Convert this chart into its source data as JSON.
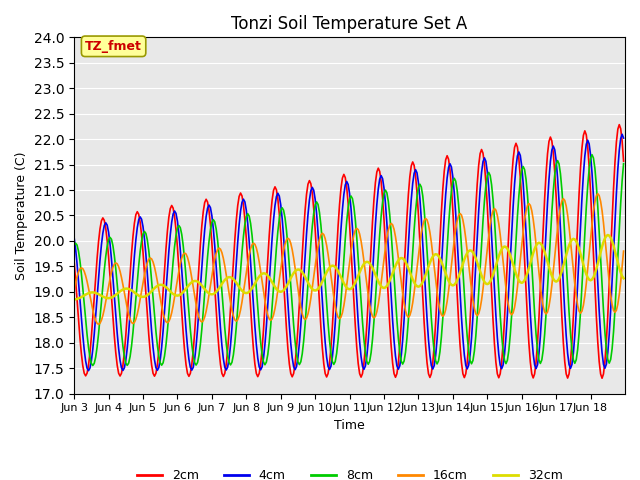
{
  "title": "Tonzi Soil Temperature Set A",
  "xlabel": "Time",
  "ylabel": "Soil Temperature (C)",
  "ylim": [
    17.0,
    24.0
  ],
  "yticks": [
    17.0,
    17.5,
    18.0,
    18.5,
    19.0,
    19.5,
    20.0,
    20.5,
    21.0,
    21.5,
    22.0,
    22.5,
    23.0,
    23.5,
    24.0
  ],
  "xtick_labels": [
    "Jun 3",
    "Jun 4",
    "Jun 5",
    "Jun 6",
    "Jun 7",
    "Jun 8",
    "Jun 9",
    "Jun 10",
    "Jun 11",
    "Jun 12",
    "Jun 13",
    "Jun 14",
    "Jun 15",
    "Jun 16",
    "Jun 17",
    "Jun 18"
  ],
  "colors": {
    "2cm": "#ff0000",
    "4cm": "#0000ee",
    "8cm": "#00cc00",
    "16cm": "#ff8800",
    "32cm": "#dddd00"
  },
  "annotation_text": "TZ_fmet",
  "annotation_color": "#cc0000",
  "annotation_bg": "#ffff99"
}
